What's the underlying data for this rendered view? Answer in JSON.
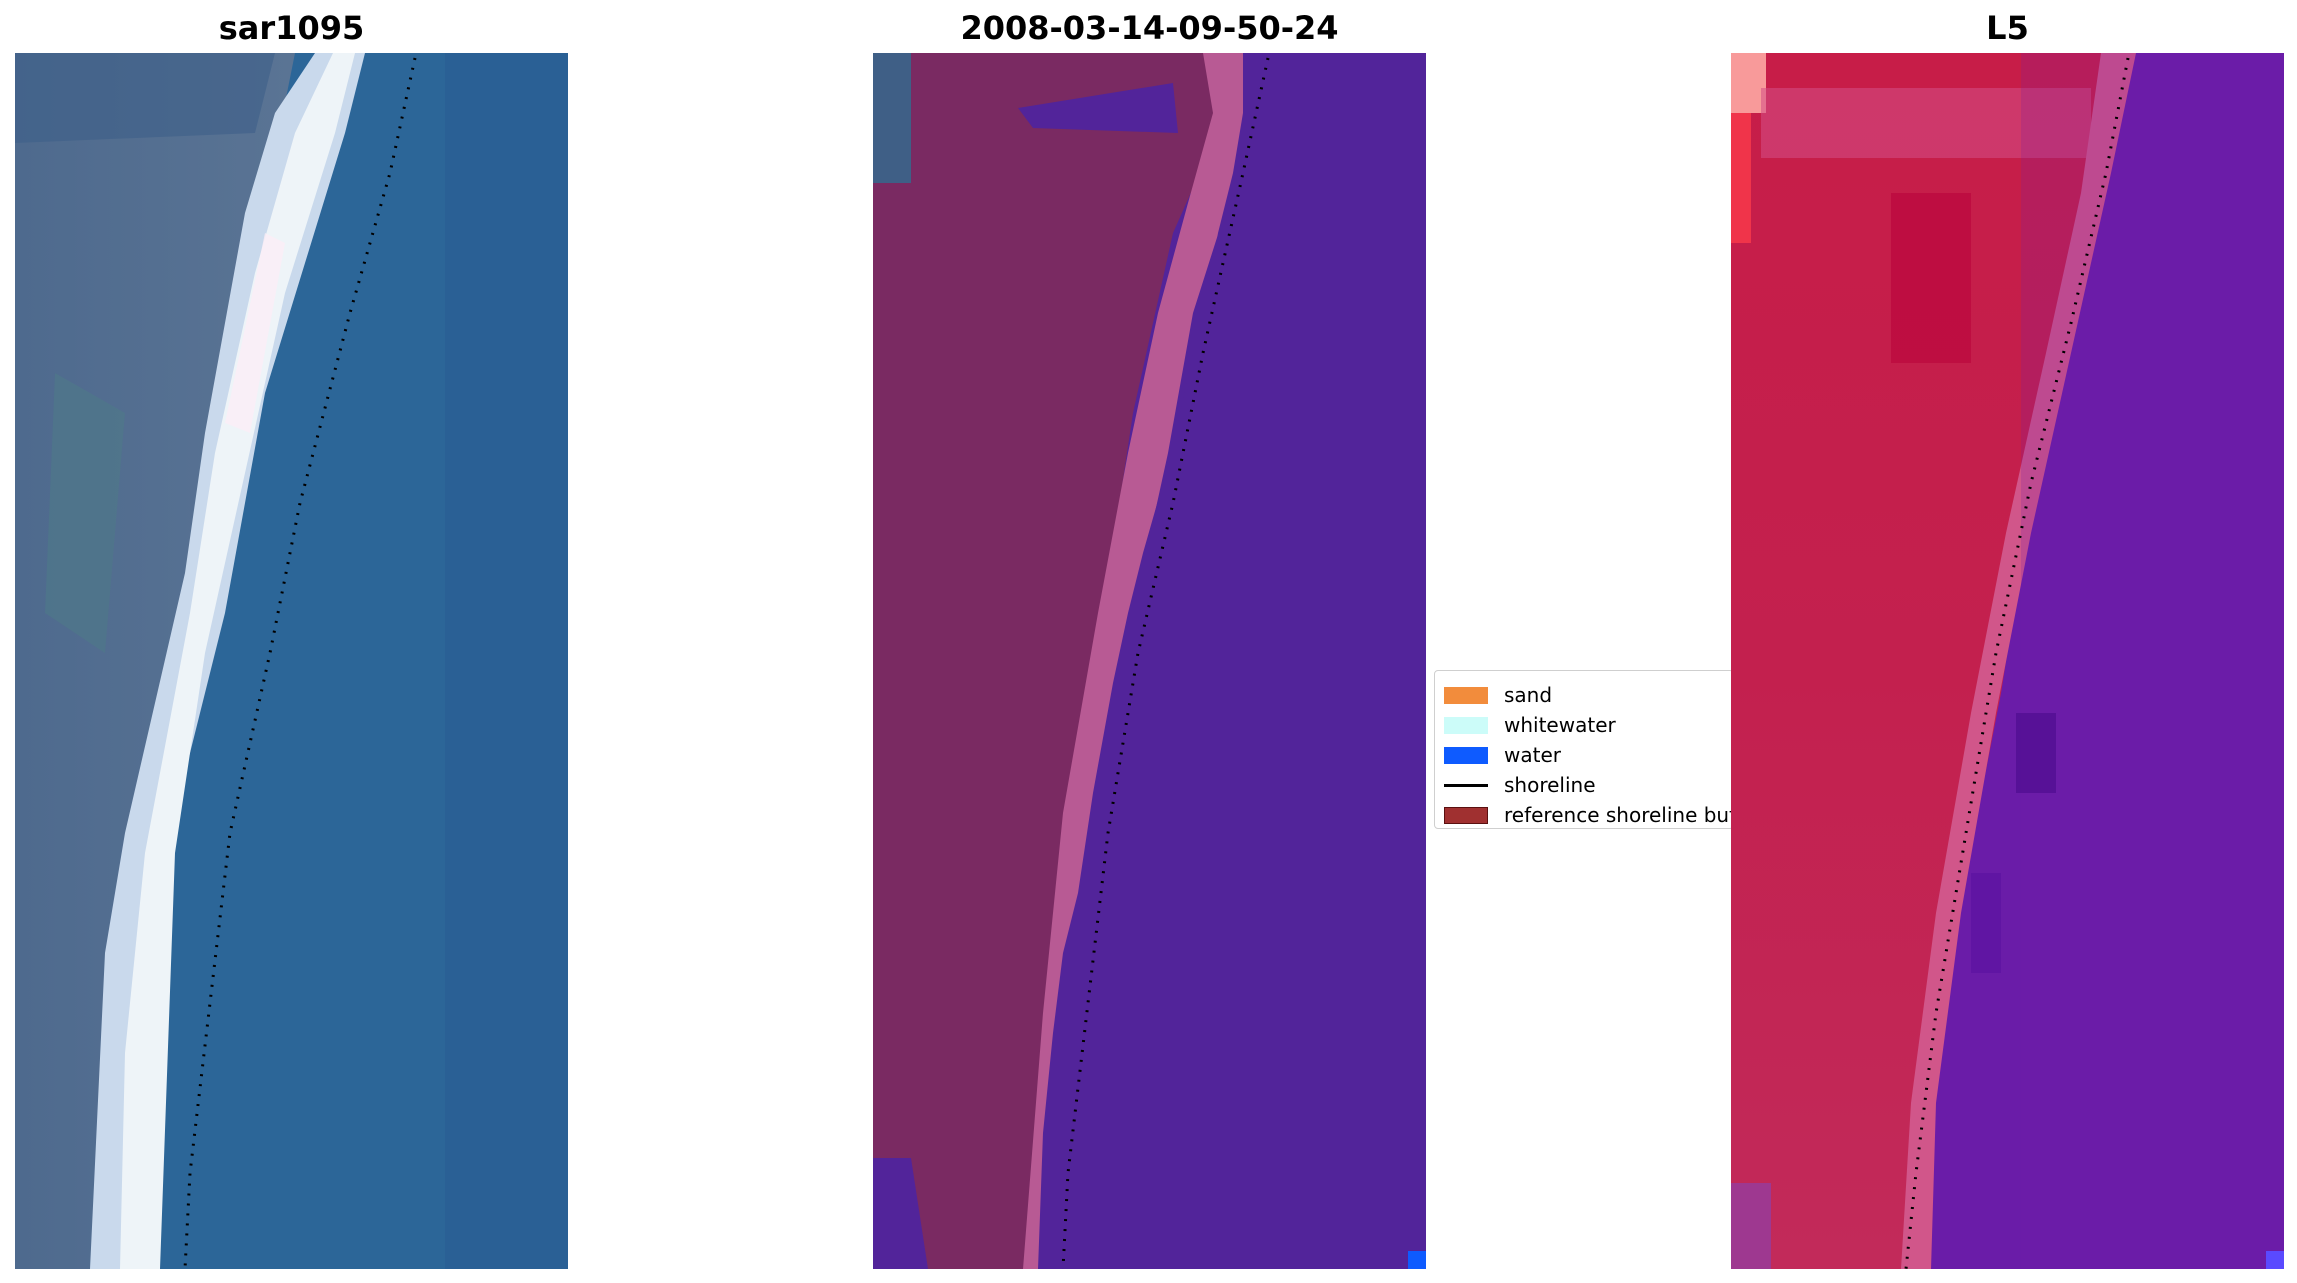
{
  "panels": [
    {
      "id": "rgb",
      "title": "sar1095"
    },
    {
      "id": "classified",
      "title": "2008-03-14-09-50-24"
    },
    {
      "id": "index",
      "title": "L5"
    }
  ],
  "legend": {
    "items": [
      {
        "label": "sand",
        "type": "patch",
        "color": "#f28c3c"
      },
      {
        "label": "whitewater",
        "type": "patch",
        "color": "#ccfcf9"
      },
      {
        "label": "water",
        "type": "patch",
        "color": "#0e5bff"
      },
      {
        "label": "shoreline",
        "type": "line",
        "color": "#000000"
      },
      {
        "label": "reference shoreline buffer",
        "type": "patch",
        "color": "#a03030"
      }
    ]
  },
  "colors": {
    "sea_rgb": "#2c6698",
    "land_rgb": "#4d6e8f",
    "whitewater_rgb": "#e9f0f6",
    "class_land": "#7a2a62",
    "class_buffer": "#b85a94",
    "class_water": "#52249a",
    "index_land": "#c01d4a",
    "index_water": "#6a1ca8"
  }
}
